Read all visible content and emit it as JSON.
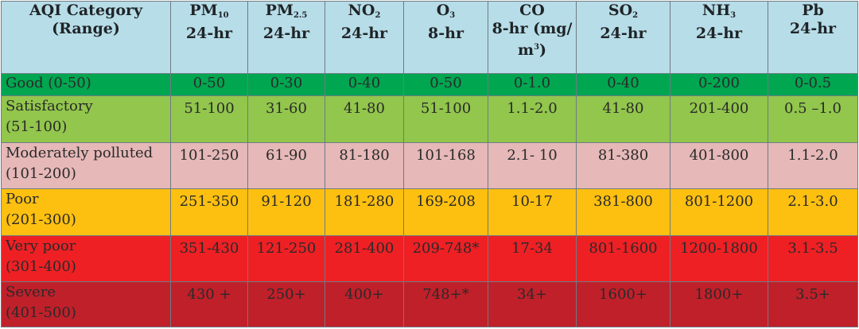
{
  "headers": [
    {
      "name": "AQI Category",
      "sub": "",
      "sup": "",
      "line2": "(Range)"
    },
    {
      "name": "PM",
      "sub": "10",
      "sup": "",
      "line2": "24-hr"
    },
    {
      "name": "PM",
      "sub": "2.5",
      "sup": "",
      "line2": "24-hr"
    },
    {
      "name": "NO",
      "sub": "2",
      "sup": "",
      "line2": "24-hr"
    },
    {
      "name": "O",
      "sub": "3",
      "sup": "",
      "line2": "8-hr"
    },
    {
      "name": "CO",
      "sub": "",
      "sup": "",
      "line2": "8-hr (mg/",
      "line3_pre": "m",
      "line3_sup": "3",
      "line3_post": ")"
    },
    {
      "name": "SO",
      "sub": "2",
      "sup": "",
      "line2": "24-hr"
    },
    {
      "name": "NH",
      "sub": "3",
      "sup": "",
      "line2": "24-hr"
    },
    {
      "name": "Pb",
      "sub": "",
      "sup": "",
      "line2": "24-hr"
    }
  ],
  "rows": [
    {
      "category": "Good (0-50)",
      "range": "",
      "bg": "#00a650",
      "values": [
        "0-50",
        "0-30",
        "0-40",
        "0-50",
        "0-1.0",
        "0-40",
        "0-200",
        "0-0.5"
      ]
    },
    {
      "category": "Satisfactory",
      "range": "(51-100)",
      "bg": "#92c64c",
      "values": [
        "51-100",
        "31-60",
        "41-80",
        "51-100",
        "1.1-2.0",
        "41-80",
        "201-400",
        "0.5 –1.0"
      ]
    },
    {
      "category": "Moderately polluted",
      "range": "(101-200)",
      "bg": "#e6b8b8",
      "values": [
        "101-250",
        "61-90",
        "81-180",
        "101-168",
        "2.1- 10",
        "81-380",
        "401-800",
        "1.1-2.0"
      ]
    },
    {
      "category": "Poor",
      "range": "(201-300)",
      "bg": "#fdc010",
      "values": [
        "251-350",
        "91-120",
        "181-280",
        "169-208",
        "10-17",
        "381-800",
        "801-1200",
        "2.1-3.0"
      ]
    },
    {
      "category": "Very poor",
      "range": "(301-400)",
      "bg": "#ee2024",
      "values": [
        "351-430",
        "121-250",
        "281-400",
        "209-748*",
        "17-34",
        "801-1600",
        "1200-1800",
        "3.1-3.5"
      ]
    },
    {
      "category": "Severe",
      "range": "(401-500)",
      "bg": "#c0202a",
      "values": [
        "430 +",
        "250+",
        "400+",
        "748+*",
        "34+",
        "1600+",
        "1800+",
        "3.5+"
      ]
    }
  ]
}
